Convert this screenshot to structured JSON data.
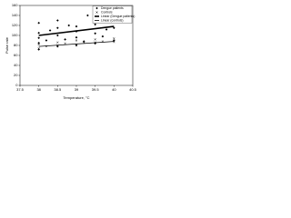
{
  "chart_data": {
    "type": "scatter",
    "xlabel": "Temperature, °C",
    "ylabel": "Pulse rate",
    "xlim": [
      37.5,
      40.5
    ],
    "xticks": [
      37.5,
      38,
      38.5,
      39,
      39.5,
      40,
      40.5
    ],
    "ylim": [
      0,
      160
    ],
    "yticks": [
      0,
      20,
      40,
      60,
      80,
      100,
      120,
      140,
      160
    ],
    "series": [
      {
        "name": "Dengue patients",
        "color": "#000000",
        "marker": "diamond",
        "x": [
          38,
          38,
          38,
          38,
          38,
          38.2,
          38.3,
          38.5,
          38.5,
          38.5,
          38.5,
          38.7,
          38.8,
          39,
          39,
          39,
          39,
          39.2,
          39.3,
          39.5,
          39.5,
          39.5,
          39.7,
          39.8,
          40,
          40,
          40
        ],
        "values": [
          72,
          85,
          95,
          105,
          125,
          90,
          110,
          78,
          100,
          115,
          130,
          92,
          120,
          80,
          96,
          108,
          118,
          88,
          140,
          84,
          104,
          122,
          98,
          112,
          90,
          115,
          128
        ]
      },
      {
        "name": "Controls",
        "color": "#000000",
        "marker": "cross",
        "x": [
          38,
          38,
          38.2,
          38.5,
          38.5,
          38.7,
          39,
          39,
          39.2,
          39.5,
          39.5,
          39.7,
          40,
          40
        ],
        "values": [
          74,
          82,
          78,
          80,
          86,
          84,
          82,
          90,
          85,
          86,
          92,
          88,
          87,
          94
        ]
      },
      {
        "name": "Linear (Dengue patients)",
        "color": "#000000",
        "type": "line",
        "width": 1.6,
        "x": [
          38,
          40
        ],
        "values": [
          100,
          118
        ]
      },
      {
        "name": "Linear (controls)",
        "color": "#000000",
        "type": "line",
        "width": 0.8,
        "x": [
          38,
          40
        ],
        "values": [
          78,
          88
        ]
      }
    ]
  }
}
